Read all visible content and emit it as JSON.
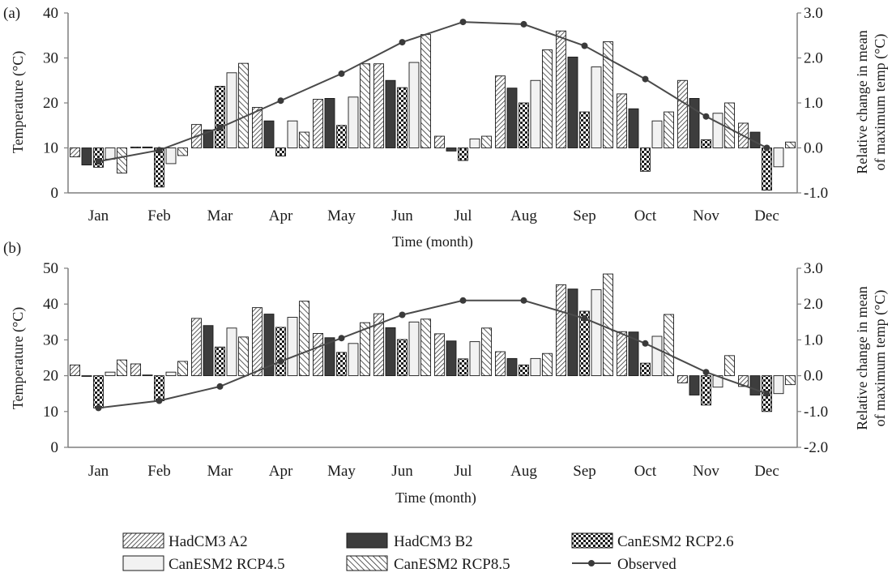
{
  "chart_data": [
    {
      "type": "bar",
      "panel_label": "(a)",
      "categories": [
        "Jan",
        "Feb",
        "Mar",
        "Apr",
        "May",
        "Jun",
        "Jul",
        "Aug",
        "Sep",
        "Oct",
        "Nov",
        "Dec"
      ],
      "xlabel": "Time (month)",
      "ylabel": "Temperature (°C)",
      "y2label_line1": "Relative change in mean",
      "y2label_line2": "of maximum temp (°C)",
      "ylim": [
        0,
        40
      ],
      "yticks": [
        0,
        10,
        20,
        30,
        40
      ],
      "ytick_labels": [
        "0",
        "10",
        "20",
        "30",
        "40"
      ],
      "y2lim": [
        -1.0,
        3.0
      ],
      "y2ticks": [
        -1.0,
        0.0,
        1.0,
        2.0,
        3.0
      ],
      "y2tick_labels": [
        "-1.0",
        "0.0",
        "1.0",
        "2.0",
        "3.0"
      ],
      "bar_baseline": 10,
      "series": [
        {
          "name": "HadCM3 A2",
          "values": [
            8.0,
            10.2,
            15.2,
            19.0,
            20.8,
            28.7,
            12.6,
            26.0,
            36.0,
            22.0,
            25.0,
            15.5
          ]
        },
        {
          "name": "HadCM3 B2",
          "values": [
            6.2,
            10.2,
            14.0,
            16.0,
            21.0,
            25.0,
            9.3,
            23.3,
            30.2,
            18.7,
            21.0,
            13.5
          ]
        },
        {
          "name": "CanESM2 RCP2.6",
          "values": [
            5.7,
            1.3,
            23.7,
            8.2,
            15.0,
            23.4,
            7.2,
            20.0,
            18.0,
            4.8,
            11.8,
            0.6
          ]
        },
        {
          "name": "CanESM2 RCP4.5",
          "values": [
            7.5,
            6.5,
            26.7,
            16.0,
            21.3,
            29.0,
            12.0,
            25.0,
            28.0,
            16.0,
            17.7,
            5.8
          ]
        },
        {
          "name": "CanESM2 RCP8.5",
          "values": [
            4.4,
            8.3,
            28.8,
            13.5,
            28.7,
            35.2,
            12.6,
            31.8,
            33.6,
            18.0,
            20.0,
            11.3
          ]
        }
      ],
      "line": {
        "name": "Observed",
        "axis": "right",
        "values": [
          -0.3,
          -0.05,
          0.45,
          1.05,
          1.65,
          2.35,
          2.8,
          2.75,
          2.27,
          1.53,
          0.7,
          0.0
        ]
      }
    },
    {
      "type": "bar",
      "panel_label": "(b)",
      "categories": [
        "Jan",
        "Feb",
        "Mar",
        "Apr",
        "May",
        "Jun",
        "Jul",
        "Aug",
        "Sep",
        "Oct",
        "Nov",
        "Dec"
      ],
      "xlabel": "Time (month)",
      "ylabel": "Temperature (°C)",
      "y2label_line1": "Relative change in mean",
      "y2label_line2": "of maximum temp (°C)",
      "ylim": [
        0,
        50
      ],
      "yticks": [
        0,
        10,
        20,
        30,
        40,
        50
      ],
      "ytick_labels": [
        "0",
        "10",
        "20",
        "30",
        "40",
        "50"
      ],
      "y2lim": [
        -2.0,
        3.0
      ],
      "y2ticks": [
        -2.0,
        -1.0,
        0.0,
        1.0,
        2.0,
        3.0
      ],
      "y2tick_labels": [
        "-2.0",
        "-1.0",
        "0.0",
        "1.0",
        "2.0",
        "3.0"
      ],
      "bar_baseline": 20,
      "series": [
        {
          "name": "HadCM3 A2",
          "values": [
            23.0,
            23.3,
            36.0,
            39.0,
            31.8,
            37.3,
            31.7,
            26.7,
            45.4,
            32.3,
            18.0,
            17.0
          ]
        },
        {
          "name": "HadCM3 B2",
          "values": [
            19.8,
            20.2,
            34.0,
            37.2,
            30.6,
            33.4,
            29.7,
            24.8,
            44.2,
            32.2,
            14.6,
            14.6
          ]
        },
        {
          "name": "CanESM2 RCP2.6",
          "values": [
            11.0,
            13.0,
            28.0,
            33.5,
            26.5,
            30.1,
            24.7,
            23.0,
            38.0,
            23.5,
            11.8,
            10.0
          ]
        },
        {
          "name": "CanESM2 RCP4.5",
          "values": [
            21.0,
            21.0,
            33.3,
            36.3,
            29.0,
            35.0,
            29.5,
            24.8,
            44.0,
            31.0,
            16.8,
            15.0
          ]
        },
        {
          "name": "CanESM2 RCP8.5",
          "values": [
            24.4,
            24.0,
            30.8,
            40.8,
            34.8,
            35.8,
            33.3,
            26.2,
            48.4,
            37.1,
            25.6,
            17.5
          ]
        }
      ],
      "line": {
        "name": "Observed",
        "axis": "right",
        "values": [
          -0.9,
          -0.7,
          -0.3,
          0.4,
          1.05,
          1.7,
          2.1,
          2.1,
          1.6,
          0.9,
          0.1,
          -0.5
        ]
      }
    }
  ],
  "legend": {
    "items": [
      {
        "label": "HadCM3 A2",
        "style": "diag-fine"
      },
      {
        "label": "HadCM3 B2",
        "style": "solid-dark"
      },
      {
        "label": "CanESM2 RCP2.6",
        "style": "dots"
      },
      {
        "label": "CanESM2 RCP4.5",
        "style": "light"
      },
      {
        "label": "CanESM2 RCP8.5",
        "style": "diag-back"
      },
      {
        "label": "Observed",
        "style": "line-marker"
      }
    ]
  },
  "colors": {
    "axis": "#7f7f7f",
    "dark_bar": "#3d3d3d",
    "light_bar": "#f2f2f2",
    "line": "#4a4a4a",
    "marker": "#3a3a3a",
    "bar_edge": "#1a1a1a"
  }
}
